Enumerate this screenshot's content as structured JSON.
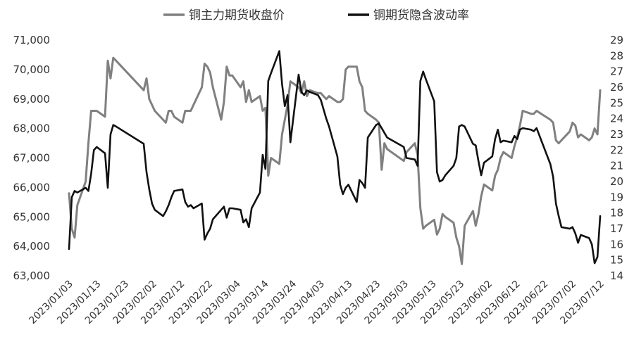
{
  "chart_data": {
    "type": "line",
    "legend": {
      "placement": "top"
    },
    "y_left": {
      "min": 63000,
      "max": 71000,
      "ticks": [
        63000,
        64000,
        65000,
        66000,
        67000,
        68000,
        69000,
        70000,
        71000
      ],
      "tick_labels": [
        "63,000",
        "64,000",
        "65,000",
        "66,000",
        "67,000",
        "68,000",
        "69,000",
        "70,000",
        "71,000"
      ]
    },
    "y_right": {
      "min": 14,
      "max": 29,
      "ticks": [
        14,
        15,
        16,
        17,
        18,
        19,
        20,
        21,
        22,
        23,
        24,
        25,
        26,
        27,
        28,
        29
      ],
      "tick_labels": [
        "14",
        "15",
        "16",
        "17",
        "18",
        "19",
        "20",
        "21",
        "22",
        "23",
        "24",
        "25",
        "26",
        "27",
        "28",
        "29"
      ]
    },
    "x": {
      "start": "2023-01-03",
      "end": "2023-07-14",
      "tick_labels": [
        "2023/01/03",
        "2023/01/13",
        "2023/01/23",
        "2023/02/02",
        "2023/02/12",
        "2023/02/22",
        "2023/03/04",
        "2023/03/14",
        "2023/03/24",
        "2023/04/03",
        "2023/04/13",
        "2023/04/23",
        "2023/05/03",
        "2023/05/13",
        "2023/05/23",
        "2023/06/02",
        "2023/06/12",
        "2023/06/22",
        "2023/07/02",
        "2023/07/12"
      ]
    },
    "grid": false,
    "series": [
      {
        "name": "铜主力期货收盘价",
        "axis": "left",
        "color": "#808080",
        "points": [
          [
            "2023-01-03",
            65800
          ],
          [
            "2023-01-04",
            64600
          ],
          [
            "2023-01-05",
            64300
          ],
          [
            "2023-01-06",
            65400
          ],
          [
            "2023-01-09",
            66200
          ],
          [
            "2023-01-10",
            67500
          ],
          [
            "2023-01-11",
            68600
          ],
          [
            "2023-01-12",
            68600
          ],
          [
            "2023-01-13",
            68600
          ],
          [
            "2023-01-16",
            68400
          ],
          [
            "2023-01-17",
            70300
          ],
          [
            "2023-01-18",
            69700
          ],
          [
            "2023-01-19",
            70400
          ],
          [
            "2023-01-20",
            70300
          ],
          [
            "2023-01-30",
            69300
          ],
          [
            "2023-01-31",
            69700
          ],
          [
            "2023-02-01",
            69000
          ],
          [
            "2023-02-02",
            68800
          ],
          [
            "2023-02-03",
            68600
          ],
          [
            "2023-02-06",
            68300
          ],
          [
            "2023-02-07",
            68200
          ],
          [
            "2023-02-08",
            68600
          ],
          [
            "2023-02-09",
            68600
          ],
          [
            "2023-02-10",
            68400
          ],
          [
            "2023-02-13",
            68200
          ],
          [
            "2023-02-14",
            68600
          ],
          [
            "2023-02-15",
            68600
          ],
          [
            "2023-02-16",
            68600
          ],
          [
            "2023-02-17",
            68800
          ],
          [
            "2023-02-20",
            69400
          ],
          [
            "2023-02-21",
            70200
          ],
          [
            "2023-02-22",
            70100
          ],
          [
            "2023-02-23",
            69900
          ],
          [
            "2023-02-24",
            69400
          ],
          [
            "2023-02-27",
            68300
          ],
          [
            "2023-02-28",
            68900
          ],
          [
            "2023-03-01",
            70100
          ],
          [
            "2023-03-02",
            69800
          ],
          [
            "2023-03-03",
            69800
          ],
          [
            "2023-03-06",
            69400
          ],
          [
            "2023-03-07",
            69600
          ],
          [
            "2023-03-08",
            68900
          ],
          [
            "2023-03-09",
            69300
          ],
          [
            "2023-03-10",
            68900
          ],
          [
            "2023-03-13",
            69100
          ],
          [
            "2023-03-14",
            68600
          ],
          [
            "2023-03-15",
            68700
          ],
          [
            "2023-03-16",
            66400
          ],
          [
            "2023-03-17",
            67000
          ],
          [
            "2023-03-20",
            66800
          ],
          [
            "2023-03-21",
            67800
          ],
          [
            "2023-03-22",
            68300
          ],
          [
            "2023-03-23",
            68800
          ],
          [
            "2023-03-24",
            69600
          ],
          [
            "2023-03-27",
            69400
          ],
          [
            "2023-03-28",
            69200
          ],
          [
            "2023-03-29",
            69600
          ],
          [
            "2023-03-30",
            69100
          ],
          [
            "2023-03-31",
            69300
          ],
          [
            "2023-04-03",
            69200
          ],
          [
            "2023-04-04",
            69200
          ],
          [
            "2023-04-06",
            69000
          ],
          [
            "2023-04-07",
            69100
          ],
          [
            "2023-04-10",
            68900
          ],
          [
            "2023-04-11",
            68900
          ],
          [
            "2023-04-12",
            69000
          ],
          [
            "2023-04-13",
            70000
          ],
          [
            "2023-04-14",
            70100
          ],
          [
            "2023-04-17",
            70100
          ],
          [
            "2023-04-18",
            69600
          ],
          [
            "2023-04-19",
            69400
          ],
          [
            "2023-04-20",
            68600
          ],
          [
            "2023-04-21",
            68500
          ],
          [
            "2023-04-24",
            68300
          ],
          [
            "2023-04-25",
            68200
          ],
          [
            "2023-04-26",
            66600
          ],
          [
            "2023-04-27",
            67500
          ],
          [
            "2023-04-28",
            67300
          ],
          [
            "2023-05-04",
            66900
          ],
          [
            "2023-05-05",
            67200
          ],
          [
            "2023-05-08",
            67500
          ],
          [
            "2023-05-09",
            67100
          ],
          [
            "2023-05-10",
            65300
          ],
          [
            "2023-05-11",
            64600
          ],
          [
            "2023-05-12",
            64700
          ],
          [
            "2023-05-15",
            64900
          ],
          [
            "2023-05-16",
            64400
          ],
          [
            "2023-05-17",
            64600
          ],
          [
            "2023-05-18",
            65100
          ],
          [
            "2023-05-19",
            65000
          ],
          [
            "2023-05-22",
            64800
          ],
          [
            "2023-05-23",
            64300
          ],
          [
            "2023-05-24",
            64000
          ],
          [
            "2023-05-25",
            63400
          ],
          [
            "2023-05-26",
            64700
          ],
          [
            "2023-05-29",
            65200
          ],
          [
            "2023-05-30",
            64700
          ],
          [
            "2023-05-31",
            65100
          ],
          [
            "2023-06-01",
            65700
          ],
          [
            "2023-06-02",
            66100
          ],
          [
            "2023-06-05",
            65900
          ],
          [
            "2023-06-06",
            66400
          ],
          [
            "2023-06-07",
            66600
          ],
          [
            "2023-06-08",
            67000
          ],
          [
            "2023-06-09",
            67200
          ],
          [
            "2023-06-12",
            67000
          ],
          [
            "2023-06-13",
            67400
          ],
          [
            "2023-06-14",
            67700
          ],
          [
            "2023-06-15",
            68100
          ],
          [
            "2023-06-16",
            68600
          ],
          [
            "2023-06-19",
            68500
          ],
          [
            "2023-06-20",
            68500
          ],
          [
            "2023-06-21",
            68600
          ],
          [
            "2023-06-26",
            68300
          ],
          [
            "2023-06-27",
            68200
          ],
          [
            "2023-06-28",
            67600
          ],
          [
            "2023-06-29",
            67500
          ],
          [
            "2023-06-30",
            67600
          ],
          [
            "2023-07-03",
            67900
          ],
          [
            "2023-07-04",
            68200
          ],
          [
            "2023-07-05",
            68100
          ],
          [
            "2023-07-06",
            67700
          ],
          [
            "2023-07-07",
            67800
          ],
          [
            "2023-07-10",
            67600
          ],
          [
            "2023-07-11",
            67700
          ],
          [
            "2023-07-12",
            68000
          ],
          [
            "2023-07-13",
            67800
          ],
          [
            "2023-07-14",
            69300
          ]
        ]
      },
      {
        "name": "铜期货隐含波动率",
        "axis": "right",
        "color": "#111111",
        "points": [
          [
            "2023-01-03",
            15.7
          ],
          [
            "2023-01-04",
            19.0
          ],
          [
            "2023-01-05",
            19.4
          ],
          [
            "2023-01-06",
            19.3
          ],
          [
            "2023-01-09",
            19.6
          ],
          [
            "2023-01-10",
            19.4
          ],
          [
            "2023-01-11",
            20.5
          ],
          [
            "2023-01-12",
            22.0
          ],
          [
            "2023-01-13",
            22.2
          ],
          [
            "2023-01-16",
            21.8
          ],
          [
            "2023-01-17",
            19.6
          ],
          [
            "2023-01-18",
            23.0
          ],
          [
            "2023-01-19",
            23.6
          ],
          [
            "2023-01-20",
            23.5
          ],
          [
            "2023-01-30",
            22.4
          ],
          [
            "2023-01-31",
            20.6
          ],
          [
            "2023-02-01",
            19.5
          ],
          [
            "2023-02-02",
            18.6
          ],
          [
            "2023-02-03",
            18.2
          ],
          [
            "2023-02-06",
            17.8
          ],
          [
            "2023-02-07",
            18.1
          ],
          [
            "2023-02-08",
            18.5
          ],
          [
            "2023-02-09",
            19.0
          ],
          [
            "2023-02-10",
            19.4
          ],
          [
            "2023-02-13",
            19.5
          ],
          [
            "2023-02-14",
            18.7
          ],
          [
            "2023-02-15",
            18.4
          ],
          [
            "2023-02-16",
            18.5
          ],
          [
            "2023-02-17",
            18.3
          ],
          [
            "2023-02-20",
            18.6
          ],
          [
            "2023-02-21",
            16.3
          ],
          [
            "2023-02-22",
            16.7
          ],
          [
            "2023-02-23",
            17.0
          ],
          [
            "2023-02-24",
            17.6
          ],
          [
            "2023-02-27",
            18.2
          ],
          [
            "2023-02-28",
            18.4
          ],
          [
            "2023-03-01",
            17.7
          ],
          [
            "2023-03-02",
            18.3
          ],
          [
            "2023-03-03",
            18.3
          ],
          [
            "2023-03-06",
            18.2
          ],
          [
            "2023-03-07",
            17.4
          ],
          [
            "2023-03-08",
            17.6
          ],
          [
            "2023-03-09",
            17.1
          ],
          [
            "2023-03-10",
            18.3
          ],
          [
            "2023-03-13",
            19.3
          ],
          [
            "2023-03-14",
            21.7
          ],
          [
            "2023-03-15",
            20.8
          ],
          [
            "2023-03-16",
            26.4
          ],
          [
            "2023-03-17",
            26.9
          ],
          [
            "2023-03-20",
            28.3
          ],
          [
            "2023-03-21",
            26.2
          ],
          [
            "2023-03-22",
            24.8
          ],
          [
            "2023-03-23",
            25.5
          ],
          [
            "2023-03-24",
            22.5
          ],
          [
            "2023-03-27",
            26.8
          ],
          [
            "2023-03-28",
            25.7
          ],
          [
            "2023-03-29",
            25.5
          ],
          [
            "2023-03-30",
            25.8
          ],
          [
            "2023-03-31",
            25.7
          ],
          [
            "2023-04-03",
            25.5
          ],
          [
            "2023-04-04",
            25.2
          ],
          [
            "2023-04-06",
            24.0
          ],
          [
            "2023-04-07",
            23.5
          ],
          [
            "2023-04-10",
            21.6
          ],
          [
            "2023-04-11",
            19.8
          ],
          [
            "2023-04-12",
            19.2
          ],
          [
            "2023-04-13",
            19.6
          ],
          [
            "2023-04-14",
            19.8
          ],
          [
            "2023-04-17",
            18.7
          ],
          [
            "2023-04-18",
            20.1
          ],
          [
            "2023-04-19",
            19.9
          ],
          [
            "2023-04-20",
            19.6
          ],
          [
            "2023-04-21",
            22.8
          ],
          [
            "2023-04-24",
            23.6
          ],
          [
            "2023-04-25",
            23.7
          ],
          [
            "2023-04-26",
            23.4
          ],
          [
            "2023-04-27",
            23.1
          ],
          [
            "2023-04-28",
            22.8
          ],
          [
            "2023-05-04",
            22.2
          ],
          [
            "2023-05-05",
            21.5
          ],
          [
            "2023-05-08",
            21.4
          ],
          [
            "2023-05-09",
            21.0
          ],
          [
            "2023-05-10",
            26.4
          ],
          [
            "2023-05-11",
            27.0
          ],
          [
            "2023-05-12",
            26.5
          ],
          [
            "2023-05-15",
            25.1
          ],
          [
            "2023-05-16",
            20.6
          ],
          [
            "2023-05-17",
            20.0
          ],
          [
            "2023-05-18",
            20.1
          ],
          [
            "2023-05-19",
            20.4
          ],
          [
            "2023-05-22",
            21.0
          ],
          [
            "2023-05-23",
            21.5
          ],
          [
            "2023-05-24",
            23.5
          ],
          [
            "2023-05-25",
            23.6
          ],
          [
            "2023-05-26",
            23.5
          ],
          [
            "2023-05-29",
            22.4
          ],
          [
            "2023-05-30",
            22.3
          ],
          [
            "2023-05-31",
            21.3
          ],
          [
            "2023-06-01",
            20.4
          ],
          [
            "2023-06-02",
            21.2
          ],
          [
            "2023-06-05",
            21.6
          ],
          [
            "2023-06-06",
            22.7
          ],
          [
            "2023-06-07",
            23.3
          ],
          [
            "2023-06-08",
            22.5
          ],
          [
            "2023-06-09",
            22.6
          ],
          [
            "2023-06-12",
            22.5
          ],
          [
            "2023-06-13",
            22.9
          ],
          [
            "2023-06-14",
            22.7
          ],
          [
            "2023-06-15",
            23.3
          ],
          [
            "2023-06-16",
            23.4
          ],
          [
            "2023-06-19",
            23.3
          ],
          [
            "2023-06-20",
            23.2
          ],
          [
            "2023-06-21",
            23.4
          ],
          [
            "2023-06-26",
            21.1
          ],
          [
            "2023-06-27",
            20.3
          ],
          [
            "2023-06-28",
            18.6
          ],
          [
            "2023-06-29",
            17.8
          ],
          [
            "2023-06-30",
            17.1
          ],
          [
            "2023-07-03",
            17.0
          ],
          [
            "2023-07-04",
            17.1
          ],
          [
            "2023-07-05",
            16.7
          ],
          [
            "2023-07-06",
            16.1
          ],
          [
            "2023-07-07",
            16.6
          ],
          [
            "2023-07-10",
            16.4
          ],
          [
            "2023-07-11",
            16.0
          ],
          [
            "2023-07-12",
            14.8
          ],
          [
            "2023-07-13",
            15.2
          ],
          [
            "2023-07-14",
            17.8
          ]
        ]
      }
    ]
  }
}
